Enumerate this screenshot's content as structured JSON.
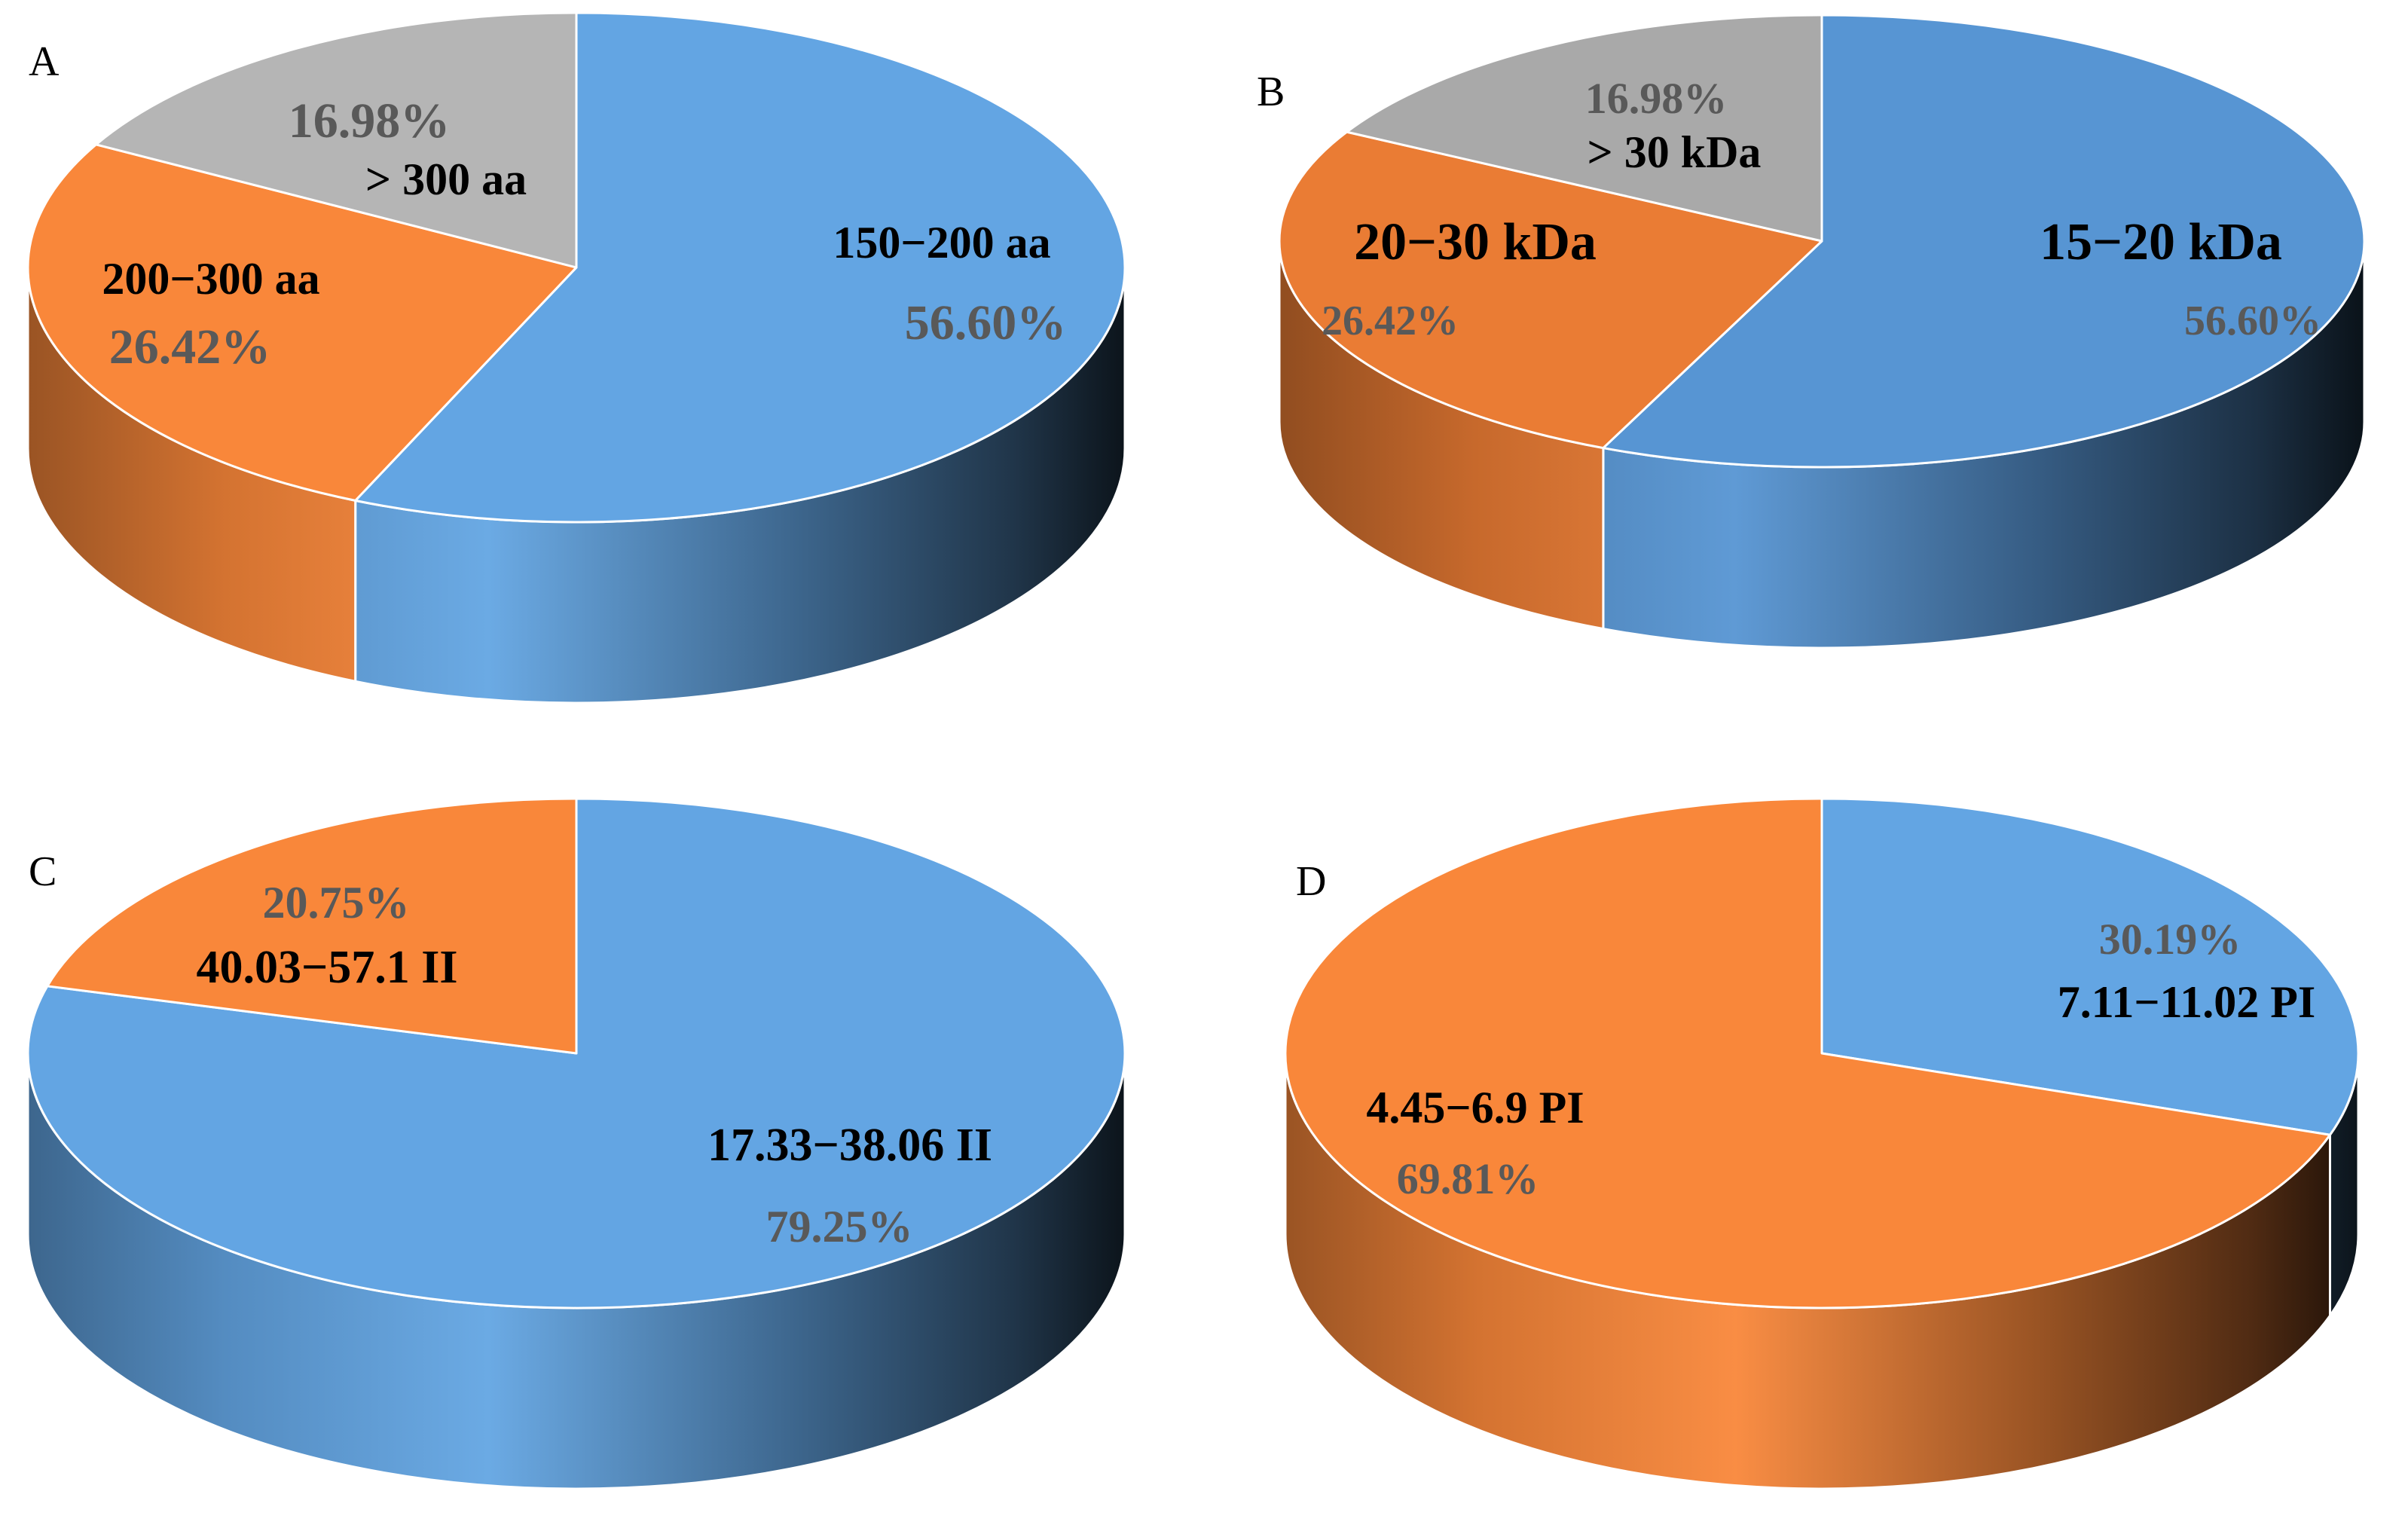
{
  "chart_data": [
    {
      "type": "pie",
      "panel": "A",
      "title": "",
      "slices": [
        {
          "category": "150−200 aa",
          "value": 56.6,
          "label": "56.60%",
          "color": "#63a5e3"
        },
        {
          "category": "200−300 aa",
          "value": 26.42,
          "label": "26.42%",
          "color": "#f9873a"
        },
        {
          "category": "> 300 aa",
          "value": 16.98,
          "label": "16.98%",
          "color": "#b5b5b5"
        }
      ]
    },
    {
      "type": "pie",
      "panel": "B",
      "title": "",
      "slices": [
        {
          "category": "15−20 kDa",
          "value": 56.6,
          "label": "56.60%",
          "color": "#5795d3"
        },
        {
          "category": "20−30 kDa",
          "value": 26.42,
          "label": "26.42%",
          "color": "#ea7c34"
        },
        {
          "category": "> 30 kDa",
          "value": 16.98,
          "label": "16.98%",
          "color": "#a9a9a9"
        }
      ]
    },
    {
      "type": "pie",
      "panel": "C",
      "title": "",
      "slices": [
        {
          "category": "17.33−38.06 II",
          "value": 79.25,
          "label": "79.25%",
          "color": "#63a5e3"
        },
        {
          "category": "40.03−57.1 II",
          "value": 20.75,
          "label": "20.75%",
          "color": "#f9873a"
        }
      ]
    },
    {
      "type": "pie",
      "panel": "D",
      "title": "",
      "slices": [
        {
          "category": "7.11−11.02 PI",
          "value": 30.19,
          "label": "30.19%",
          "color": "#63a5e3"
        },
        {
          "category": "4.45−6.9 PI",
          "value": 69.81,
          "label": "69.81%",
          "color": "#f9873a"
        }
      ]
    }
  ]
}
